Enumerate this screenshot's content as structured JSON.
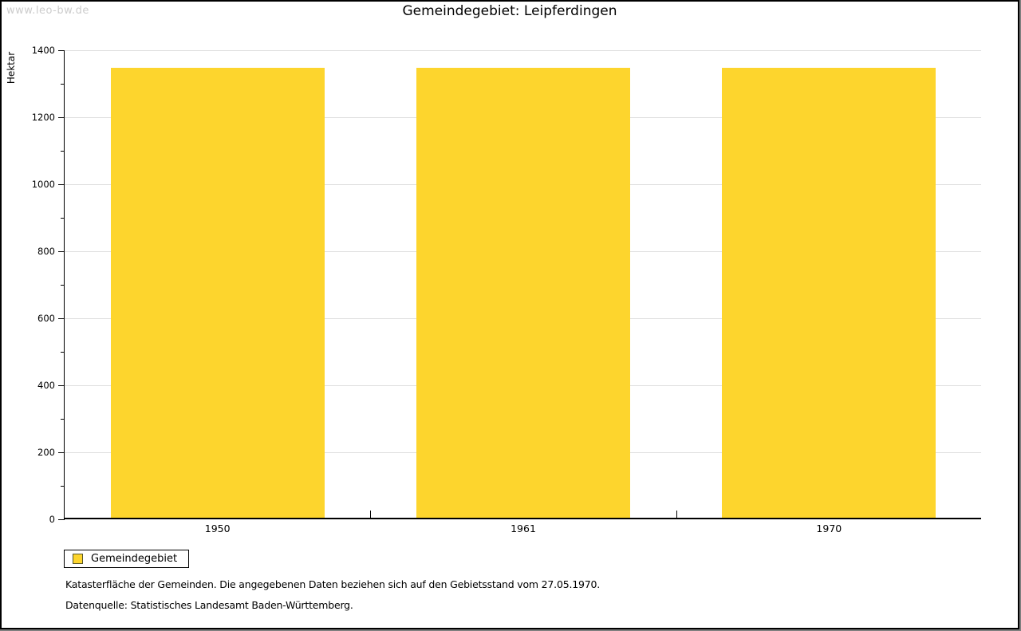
{
  "watermark": "www.leo-bw.de",
  "title": "Gemeindegebiet: Leipferdingen",
  "legend": {
    "label": "Gemeindegebiet"
  },
  "footer": {
    "line1": "Katasterfläche der Gemeinden. Die angegebenen Daten beziehen sich auf den Gebietsstand vom 27.05.1970.",
    "line2": "Datenquelle: Statistisches Landesamt Baden-Württemberg."
  },
  "colors": {
    "bar": "#FDD52D",
    "grid": "#DDDDDD",
    "axis": "#000000",
    "watermark": "#CCCCCC",
    "swatch_border": "#55552A"
  },
  "chart_data": {
    "type": "bar",
    "title": "Gemeindegebiet: Leipferdingen",
    "categories": [
      "1950",
      "1961",
      "1970"
    ],
    "series": [
      {
        "name": "Gemeindegebiet",
        "values": [
          1343,
          1343,
          1343
        ]
      }
    ],
    "xlabel": "",
    "ylabel": "Hektar",
    "ylim": [
      0,
      1400
    ],
    "yticks_major": [
      0,
      200,
      400,
      600,
      800,
      1000,
      1200,
      1400
    ],
    "yticks_minor": [
      100,
      300,
      500,
      700,
      900,
      1100,
      1300
    ],
    "grid": "horizontal-major",
    "legend_position": "bottom-left",
    "bar_width_fraction": 0.7
  }
}
